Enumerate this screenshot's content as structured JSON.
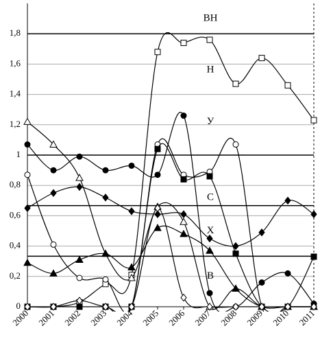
{
  "chart_data": {
    "type": "line",
    "categories": [
      "2000",
      "2001",
      "2002",
      "2003",
      "2004",
      "2005",
      "2006",
      "2007",
      "2008",
      "2009",
      "2010",
      "2011"
    ],
    "ylim": [
      0,
      2
    ],
    "yticks": [
      {
        "value": 0,
        "label": "0"
      },
      {
        "value": 0.2,
        "label": "0,2"
      },
      {
        "value": 0.4,
        "label": "0,4"
      },
      {
        "value": 0.6,
        "label": "0,6"
      },
      {
        "value": 0.8,
        "label": "0,8"
      },
      {
        "value": 1,
        "label": "1"
      },
      {
        "value": 1.2,
        "label": "1,2"
      },
      {
        "value": 1.4,
        "label": "1,4"
      },
      {
        "value": 1.6,
        "label": "1,6"
      },
      {
        "value": 1.8,
        "label": "1,8"
      }
    ],
    "grid": true,
    "thresholds": [
      1.8,
      1,
      0.667,
      0.333
    ],
    "bands": [
      {
        "label": "ВН",
        "y": 1.9
      },
      {
        "label": "Н",
        "y": 1.56
      },
      {
        "label": "У",
        "y": 1.22
      },
      {
        "label": "С",
        "y": 0.72
      },
      {
        "label": "Х",
        "y": 0.5
      },
      {
        "label": "В",
        "y": 0.2
      }
    ],
    "series": [
      {
        "marker": "open-square",
        "color": "#000",
        "values": [
          0,
          0,
          0.03,
          0.15,
          0.21,
          1.68,
          1.74,
          1.76,
          1.47,
          1.64,
          1.46,
          1.23
        ]
      },
      {
        "marker": "filled-circle",
        "color": "#000",
        "values": [
          1.07,
          0.9,
          0.99,
          0.9,
          0.93,
          0.87,
          1.26,
          0.09,
          0,
          0.16,
          0.22,
          0.02
        ]
      },
      {
        "marker": "open-circle",
        "color": "#000",
        "values": [
          0.87,
          0.41,
          0.19,
          0.18,
          0,
          1.07,
          0.87,
          0.89,
          1.07,
          0,
          0,
          0
        ]
      },
      {
        "marker": "open-triangle",
        "color": "#000",
        "values": [
          1.22,
          1.07,
          0.85,
          0.35,
          0.19,
          0.66,
          0.56,
          0,
          0.12,
          0,
          0,
          0
        ]
      },
      {
        "marker": "filled-diamond",
        "color": "#000",
        "values": [
          0.65,
          0.75,
          0.79,
          0.72,
          0.63,
          0.61,
          0.61,
          0.45,
          0.4,
          0.49,
          0.7,
          0.61
        ]
      },
      {
        "marker": "filled-triangle",
        "color": "#000",
        "values": [
          0.29,
          0.22,
          0.31,
          0.35,
          0.26,
          0.52,
          0.48,
          0.37,
          0.12,
          0,
          0,
          0
        ]
      },
      {
        "marker": "filled-square",
        "color": "#000",
        "values": [
          0,
          0,
          0,
          0,
          0,
          1.04,
          0.84,
          0.86,
          0.35,
          0,
          0,
          0.33
        ]
      },
      {
        "marker": "open-diamond",
        "color": "#000",
        "values": [
          0,
          0,
          0.04,
          0,
          0,
          0.65,
          0.06,
          0,
          0,
          0,
          0,
          0
        ]
      }
    ]
  }
}
